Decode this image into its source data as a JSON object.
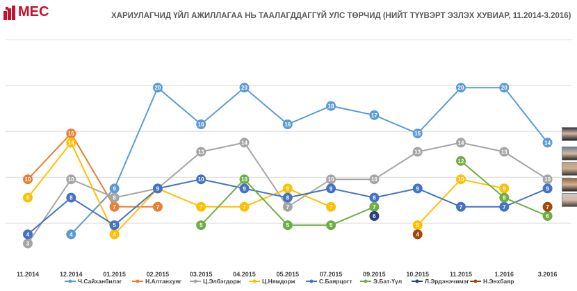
{
  "brand": {
    "name": "MEC"
  },
  "chart_data": {
    "type": "line",
    "title": "ХАРИУЛАГЧИД ҮЙЛ АЖИЛЛАГАА НЬ ТААЛАГДДАГГҮЙ УЛС ТӨРЧИД (НИЙТ ТҮҮВЭРТ ЭЗЛЭХ ХУВИАР, 11.2014-3.2016)",
    "categories": [
      "11.2014",
      "12.2014",
      "01.2015",
      "02.2015",
      "03.2015",
      "04.2015",
      "05.2015",
      "07.2015",
      "09.2015",
      "10.2015",
      "11.2015",
      "1.2016",
      "3.2016"
    ],
    "ylim": [
      0,
      26
    ],
    "grid": true,
    "legend_position": "bottom",
    "series": [
      {
        "name": "Ч.Сайханбилэг",
        "color": "#5b9bd5",
        "values": [
          null,
          4,
          9,
          20,
          16,
          20,
          16,
          18,
          17,
          15,
          20,
          20,
          14
        ]
      },
      {
        "name": "Н.Алтанхуяг",
        "color": "#ed7d31",
        "values": [
          10,
          15,
          7,
          7,
          null,
          null,
          null,
          null,
          null,
          null,
          null,
          null,
          null
        ]
      },
      {
        "name": "Ц.Элбэгдорж",
        "color": "#a5a5a5",
        "values": [
          3,
          10,
          8,
          9,
          13,
          14,
          7,
          10,
          10,
          13,
          14,
          13,
          10
        ]
      },
      {
        "name": "Ц.Нямдорж",
        "color": "#ffc000",
        "values": [
          8,
          14,
          4,
          9,
          7,
          7,
          9,
          7,
          null,
          5,
          10,
          9,
          null
        ]
      },
      {
        "name": "С.Баярцогт",
        "color": "#4472c4",
        "values": [
          4,
          8,
          5,
          9,
          10,
          9,
          8,
          9,
          8,
          9,
          7,
          7,
          9
        ]
      },
      {
        "name": "Э.Бат-Үүл",
        "color": "#70ad47",
        "values": [
          null,
          null,
          null,
          null,
          5,
          10,
          5,
          5,
          7,
          null,
          12,
          8,
          6
        ]
      },
      {
        "name": "Л.Эрдэнэчимэг",
        "color": "#264478",
        "values": [
          null,
          null,
          null,
          null,
          null,
          null,
          null,
          null,
          6,
          null,
          null,
          null,
          null
        ]
      },
      {
        "name": "Н.Энхбаяр",
        "color": "#9e480e",
        "values": [
          null,
          null,
          null,
          null,
          null,
          null,
          null,
          null,
          null,
          4,
          null,
          null,
          7
        ]
      }
    ]
  }
}
